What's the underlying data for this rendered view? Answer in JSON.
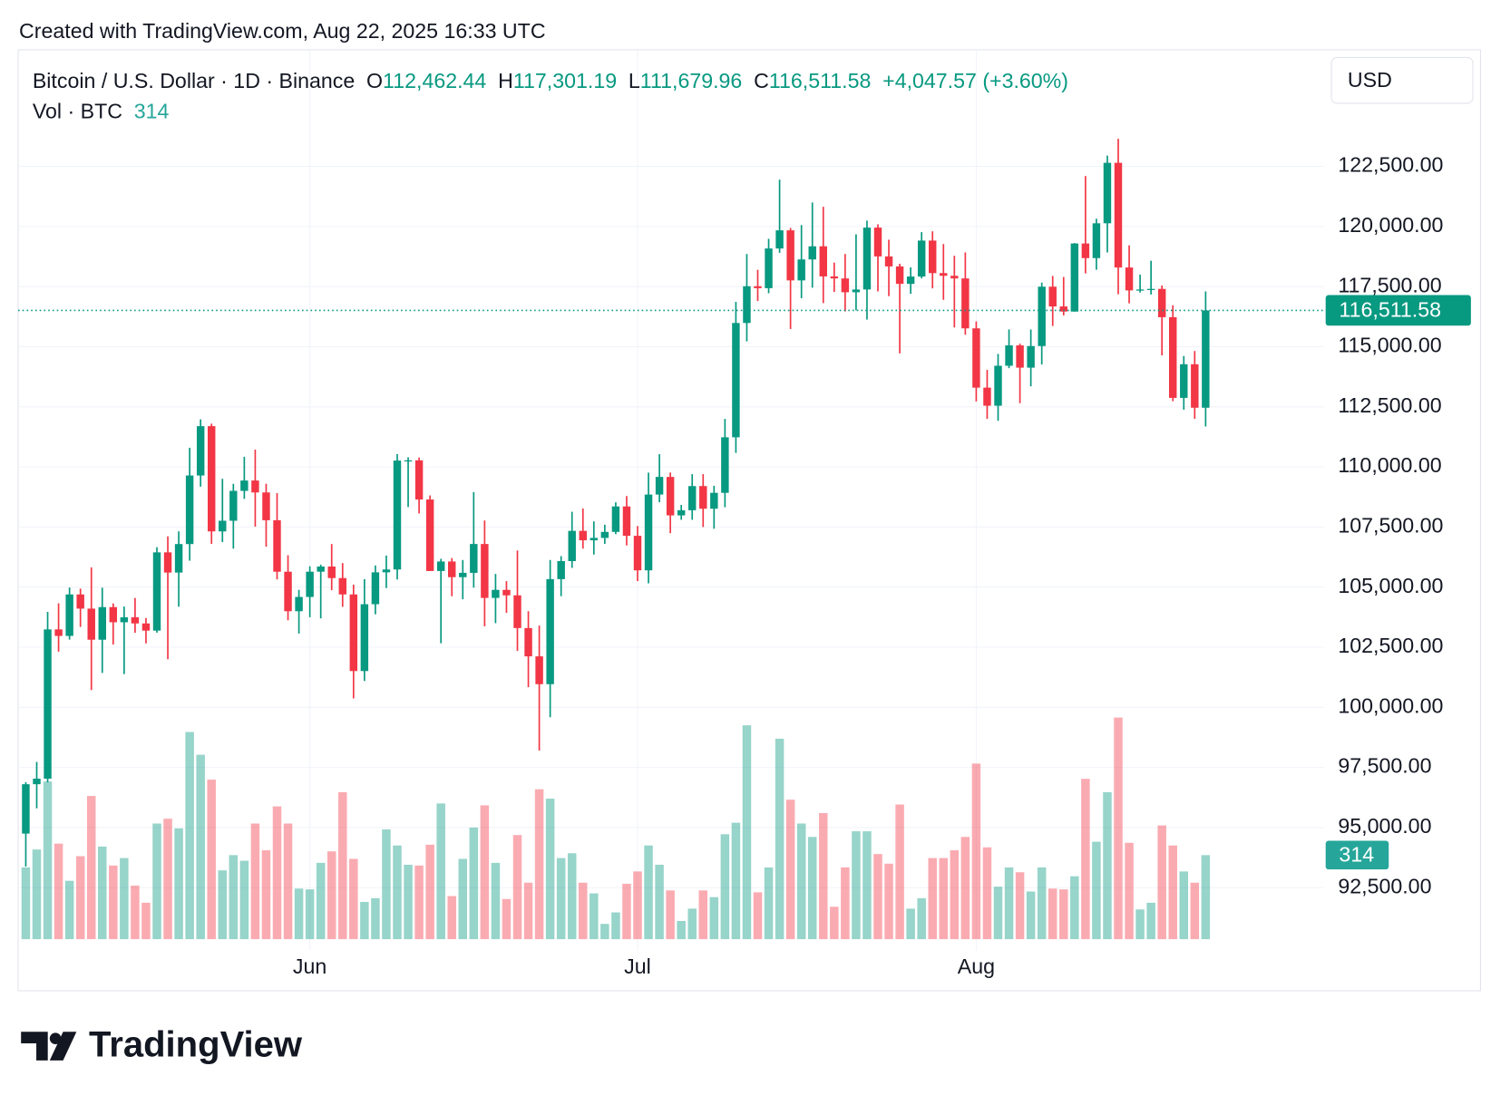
{
  "header": "Created with TradingView.com, Aug 22, 2025 16:33 UTC",
  "logo": "TradingView",
  "currency": "USD",
  "chart_data": {
    "type": "candlestick",
    "legend": {
      "symbol": "Bitcoin / U.S. Dollar · 1D · Binance",
      "open_label": "O",
      "open": "112,462.44",
      "high_label": "H",
      "high": "117,301.19",
      "low_label": "L",
      "low": "111,679.96",
      "close_label": "C",
      "close": "116,511.58",
      "change": "+4,047.57 (+3.60%)",
      "volume_label": "Vol · BTC"
    },
    "up_color": "#089981",
    "down_color": "#f23645",
    "categories": [
      null,
      null,
      null,
      null,
      null,
      null,
      null,
      null,
      null,
      null,
      null,
      null,
      null,
      null,
      null,
      null,
      null,
      null,
      null,
      null,
      null,
      null,
      null,
      null,
      null,
      null,
      "Jun",
      null,
      null,
      null,
      null,
      null,
      null,
      null,
      null,
      null,
      null,
      null,
      null,
      null,
      null,
      null,
      null,
      null,
      null,
      null,
      null,
      null,
      null,
      null,
      null,
      null,
      null,
      null,
      null,
      null,
      "Jul",
      null,
      null,
      null,
      null,
      null,
      null,
      null,
      null,
      null,
      null,
      null,
      null,
      null,
      null,
      null,
      null,
      null,
      null,
      null,
      null,
      null,
      null,
      null,
      null,
      null,
      null,
      null,
      null,
      null,
      null,
      "Aug",
      null,
      null,
      null,
      null,
      null,
      null,
      null,
      null,
      null,
      null,
      null,
      null,
      null,
      null,
      null,
      null,
      null,
      null,
      null,
      null,
      null
    ],
    "open": [
      94748,
      96802,
      97032,
      103241,
      102971,
      104696,
      104106,
      102812,
      104169,
      103539,
      103744,
      103489,
      103191,
      106446,
      105606,
      106791,
      109643,
      111696,
      107318,
      107761,
      109004,
      109434,
      108938,
      107782,
      105641,
      103998,
      104591,
      105642,
      105857,
      105376,
      104696,
      101509,
      104289,
      105616,
      105734,
      110264,
      110274,
      108645,
      105671,
      106066,
      105414,
      105594,
      106794,
      104551,
      104886,
      104658,
      103297,
      102120,
      100963,
      105333,
      106083,
      107340,
      106948,
      107047,
      107297,
      108356,
      107135,
      105698,
      108850,
      109584,
      107984,
      108198,
      109203,
      108262,
      108922,
      111233,
      115987,
      117516,
      117435,
      119086,
      119841,
      117758,
      118630,
      119177,
      117924,
      117840,
      117265,
      117380,
      119954,
      118756,
      118340,
      117614,
      117919,
      119415,
      118062,
      117950,
      117840,
      115764,
      113297,
      112546,
      114208,
      115055,
      114129,
      115028,
      117496,
      116674,
      116462,
      119294,
      118686,
      120134,
      122650,
      118295,
      117342,
      117380,
      117405,
      116227,
      112872,
      114271,
      112462.44
    ],
    "high": [
      96889,
      97732,
      103969,
      104324,
      104984,
      104937,
      105819,
      104976,
      104323,
      104192,
      104550,
      103716,
      106660,
      107108,
      107320,
      110797,
      111980,
      111800,
      109506,
      109299,
      110422,
      110718,
      109300,
      108910,
      106325,
      104886,
      105867,
      105935,
      106794,
      106000,
      105100,
      105333,
      105900,
      106314,
      110530,
      110400,
      110392,
      108813,
      106179,
      106209,
      106128,
      108952,
      107771,
      105550,
      105250,
      106524,
      104000,
      103400,
      106128,
      106290,
      108135,
      108272,
      107735,
      107596,
      108528,
      108789,
      107540,
      109763,
      110529,
      109767,
      108420,
      109700,
      109700,
      109216,
      111999,
      116868,
      118856,
      118200,
      119488,
      121950,
      119940,
      120063,
      120998,
      120820,
      118499,
      118856,
      119676,
      120247,
      120090,
      119450,
      118451,
      118300,
      119766,
      119800,
      119273,
      118783,
      118922,
      116052,
      114036,
      114700,
      115720,
      115127,
      115716,
      117666,
      117944,
      117900,
      119311,
      122100,
      120324,
      122950,
      123650,
      119216,
      117999,
      118575,
      117543,
      116725,
      114615,
      114821,
      117301.19
    ],
    "low": [
      93377,
      95800,
      96880,
      102315,
      102818,
      103346,
      100718,
      101429,
      102614,
      101383,
      103100,
      102659,
      103105,
      102000,
      104184,
      106100,
      109177,
      106800,
      106875,
      106600,
      108670,
      107516,
      106682,
      105322,
      103621,
      103068,
      103750,
      103700,
      104872,
      104179,
      100372,
      101095,
      103871,
      104962,
      105318,
      108331,
      108064,
      105671,
      102664,
      104622,
      104494,
      104979,
      103371,
      103500,
      103929,
      102345,
      100837,
      98200,
      99588,
      104622,
      105800,
      106600,
      106356,
      106800,
      107203,
      106733,
      105250,
      105157,
      108530,
      107245,
      107800,
      107800,
      107500,
      107429,
      108324,
      110582,
      115222,
      116900,
      117224,
      118905,
      115736,
      117017,
      117453,
      116812,
      117277,
      116467,
      116515,
      116128,
      117301,
      117103,
      114723,
      117200,
      117841,
      117427,
      116950,
      115800,
      115500,
      112722,
      112000,
      111920,
      114108,
      112650,
      113353,
      114259,
      115862,
      116300,
      116460,
      118050,
      118200,
      118920,
      117180,
      116803,
      117254,
      117172,
      114640,
      112732,
      112380,
      112000,
      111679.96
    ],
    "close": [
      96802,
      97032,
      103241,
      102971,
      104696,
      104106,
      102812,
      104169,
      103539,
      103744,
      103489,
      103191,
      106446,
      105606,
      106791,
      109643,
      111696,
      107318,
      107761,
      109004,
      109434,
      108938,
      107782,
      105641,
      103998,
      104591,
      105642,
      105857,
      105376,
      104696,
      101509,
      104289,
      105616,
      105734,
      110264,
      110274,
      108645,
      105671,
      106066,
      105414,
      105594,
      106794,
      104551,
      104886,
      104658,
      103297,
      102120,
      100963,
      105333,
      106083,
      107340,
      106948,
      107047,
      107297,
      108356,
      107135,
      105698,
      108850,
      109584,
      107984,
      108198,
      109203,
      108262,
      108922,
      111233,
      115987,
      117516,
      117435,
      119086,
      119841,
      117758,
      118630,
      119177,
      117924,
      117840,
      117265,
      117380,
      119954,
      118756,
      118340,
      117614,
      117919,
      119415,
      118062,
      117950,
      117840,
      115764,
      113297,
      112546,
      114208,
      115055,
      114129,
      115028,
      117496,
      116674,
      116462,
      119294,
      118686,
      120134,
      122650,
      118295,
      117342,
      117380,
      117405,
      116227,
      112872,
      114271,
      112462.44,
      116511.58
    ],
    "volume": [
      268,
      335,
      589,
      357,
      218,
      310,
      535,
      346,
      275,
      303,
      200,
      136,
      432,
      450,
      414,
      774,
      689,
      596,
      257,
      314,
      293,
      432,
      332,
      496,
      432,
      189,
      186,
      285,
      328,
      549,
      300,
      139,
      153,
      410,
      350,
      278,
      275,
      353,
      507,
      161,
      300,
      417,
      500,
      285,
      150,
      389,
      211,
      560,
      525,
      303,
      321,
      211,
      171,
      57,
      100,
      207,
      253,
      350,
      278,
      182,
      68,
      114,
      182,
      157,
      392,
      435,
      799,
      175,
      268,
      749,
      521,
      432,
      382,
      471,
      121,
      268,
      403,
      403,
      318,
      282,
      503,
      114,
      153,
      303,
      303,
      332,
      382,
      656,
      343,
      196,
      268,
      250,
      178,
      268,
      189,
      186,
      235,
      599,
      364,
      549,
      828,
      360,
      111,
      136,
      425,
      350,
      253,
      211,
      314
    ],
    "last_price": {
      "value": 116511.58,
      "label": "116,511.58"
    },
    "ylim": [
      89880,
      127350
    ],
    "yticks": [
      {
        "value": 92500,
        "label": "92,500.00"
      },
      {
        "value": 95000,
        "label": "95,000.00"
      },
      {
        "value": 97500,
        "label": "97,500.00"
      },
      {
        "value": 100000,
        "label": "100,000.00"
      },
      {
        "value": 102500,
        "label": "102,500.00"
      },
      {
        "value": 105000,
        "label": "105,000.00"
      },
      {
        "value": 107500,
        "label": "107,500.00"
      },
      {
        "value": 110000,
        "label": "110,000.00"
      },
      {
        "value": 112500,
        "label": "112,500.00"
      },
      {
        "value": 115000,
        "label": "115,000.00"
      },
      {
        "value": 117500,
        "label": "117,500.00"
      },
      {
        "value": 120000,
        "label": "120,000.00"
      },
      {
        "value": 122500,
        "label": "122,500.00"
      }
    ],
    "grid": true
  }
}
